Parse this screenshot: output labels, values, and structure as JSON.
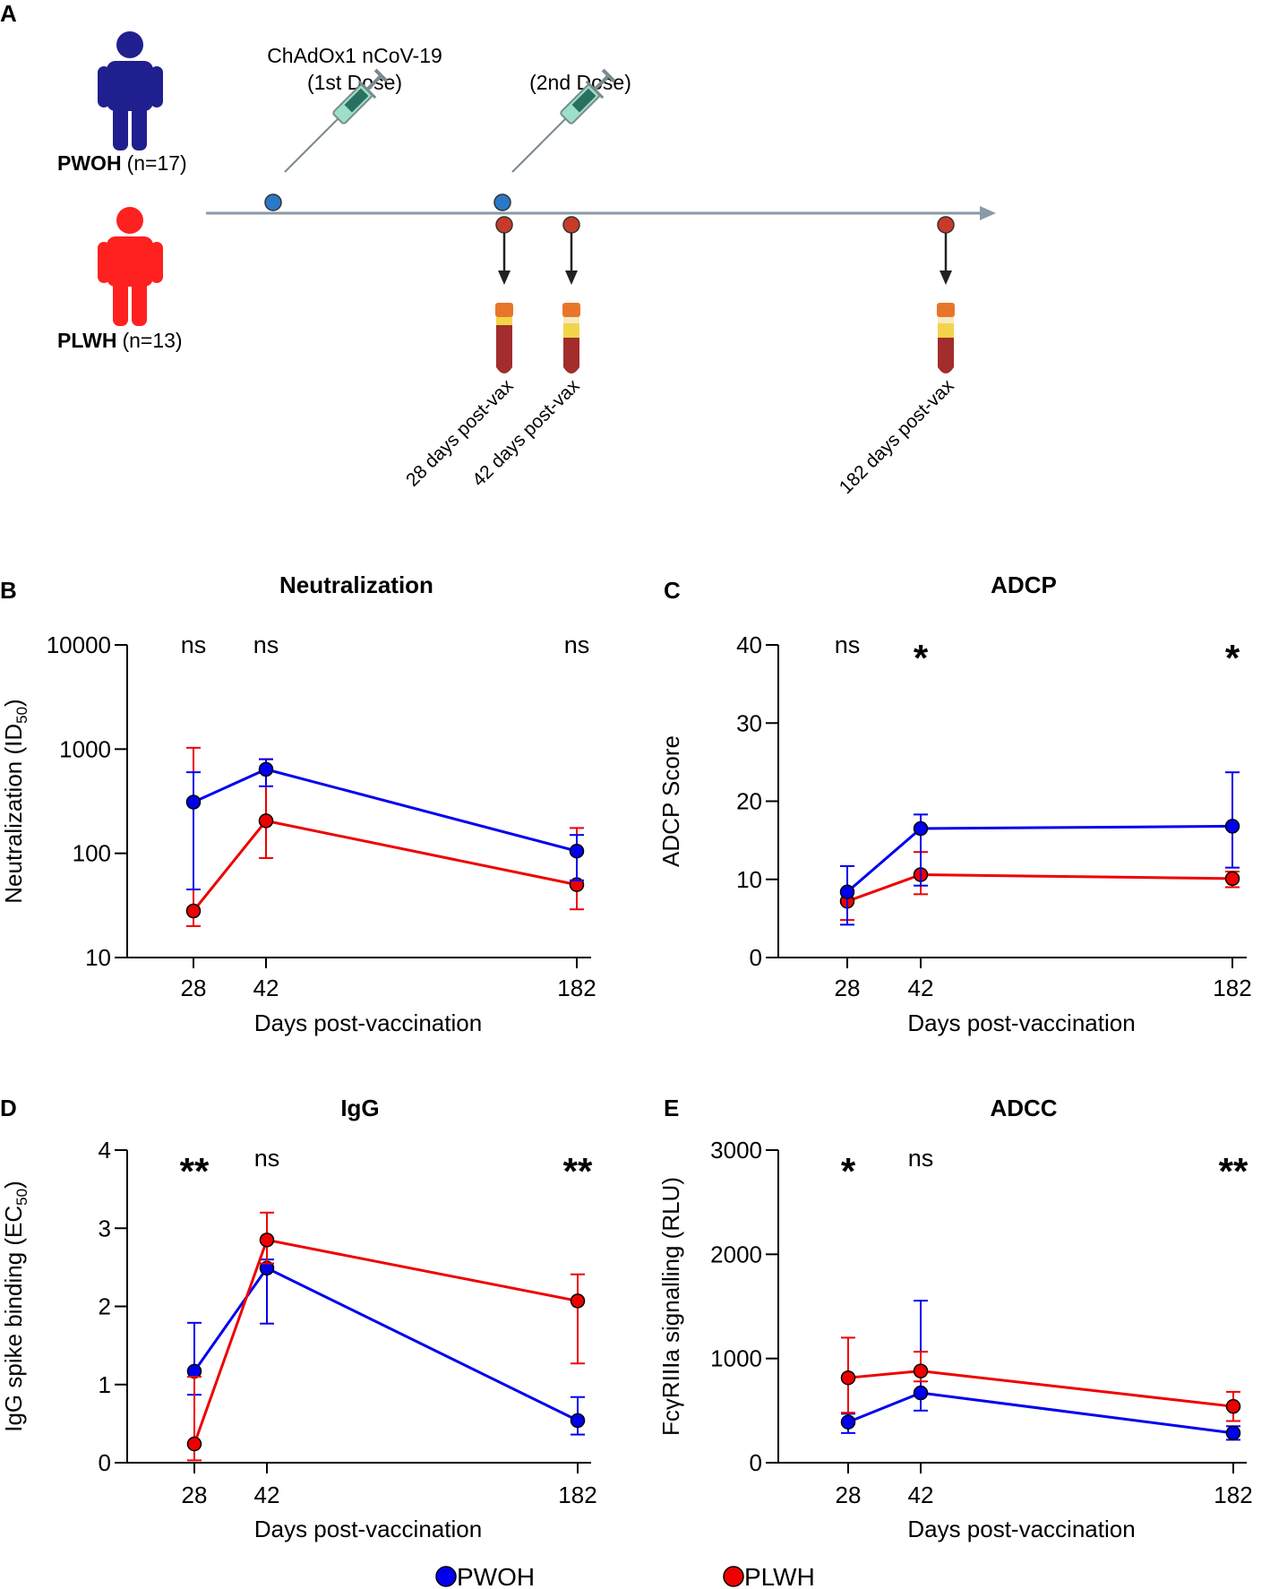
{
  "schematic": {
    "panel_label": "A",
    "groups": [
      {
        "name": "PWOH",
        "n_label": "(n=17)",
        "color": "#1f1f8f"
      },
      {
        "name": "PLWH",
        "n_label": "(n=13)",
        "color": "#ff2020"
      }
    ],
    "doses": [
      {
        "line1": "ChAdOx1 nCoV-19",
        "line2": "(1st Dose)"
      },
      {
        "line1": "",
        "line2": "(2nd Dose)"
      }
    ],
    "timepoints": [
      "28 days post-vax",
      "42 days post-vax",
      "182 days post-vax"
    ]
  },
  "colors": {
    "pwoh": "#0000ee",
    "plwh": "#ee0000",
    "pwoh_dark": "#1f1f8f",
    "plwh_dark": "#ff2020",
    "timeline": "#8a9aa8",
    "dot_blue": "#2a78c8",
    "dot_red": "#c83a2a"
  },
  "legend": [
    {
      "label": "PWOH",
      "color": "#0000ee"
    },
    {
      "label": "PLWH",
      "color": "#ee0000"
    }
  ],
  "chart_data": [
    {
      "panel": "B",
      "type": "line",
      "title": "Neutralization",
      "xlabel": "Days post-vaccination",
      "ylabel": "Neutralization (ID50)",
      "ylabel_main": "Neutralization (ID",
      "ylabel_sub": "50",
      "ylabel_end": ")",
      "yscale": "log",
      "ylim": [
        10,
        10000
      ],
      "yticks": [
        10,
        100,
        1000,
        10000
      ],
      "ytick_labels": [
        "10",
        "100",
        "1000",
        "10000"
      ],
      "x": [
        28,
        42,
        182
      ],
      "xtick_labels": [
        "28",
        "42",
        "182"
      ],
      "series": [
        {
          "name": "PWOH",
          "values": [
            310,
            640,
            105
          ],
          "err_low": [
            45,
            440,
            55
          ],
          "err_high": [
            600,
            800,
            150
          ]
        },
        {
          "name": "PLWH",
          "values": [
            28,
            205,
            50
          ],
          "err_low": [
            20,
            90,
            29
          ],
          "err_high": [
            1030,
            800,
            175
          ]
        }
      ],
      "significance": [
        "ns",
        "ns",
        "ns"
      ]
    },
    {
      "panel": "C",
      "type": "line",
      "title": "ADCP",
      "xlabel": "Days post-vaccination",
      "ylabel": "ADCP Score",
      "yscale": "linear",
      "ylim": [
        0,
        40
      ],
      "yticks": [
        0,
        10,
        20,
        30,
        40
      ],
      "ytick_labels": [
        "0",
        "10",
        "20",
        "30",
        "40"
      ],
      "x": [
        28,
        42,
        182
      ],
      "xtick_labels": [
        "28",
        "42",
        "182"
      ],
      "series": [
        {
          "name": "PWOH",
          "values": [
            8.4,
            16.5,
            16.8
          ],
          "err_low": [
            4.2,
            9.2,
            11.5
          ],
          "err_high": [
            11.7,
            18.3,
            23.7
          ]
        },
        {
          "name": "PLWH",
          "values": [
            7.2,
            10.6,
            10.1
          ],
          "err_low": [
            4.8,
            8.1,
            9.0
          ],
          "err_high": [
            8.5,
            13.5,
            11.0
          ]
        }
      ],
      "significance": [
        "ns",
        "*",
        "*"
      ]
    },
    {
      "panel": "D",
      "type": "line",
      "title": "IgG",
      "xlabel": "Days post-vaccination",
      "ylabel": "IgG spike binding (EC50)",
      "ylabel_main": "IgG spike binding (EC",
      "ylabel_sub": "50",
      "ylabel_end": ")",
      "yscale": "linear",
      "ylim": [
        0,
        4
      ],
      "yticks": [
        0,
        1,
        2,
        3,
        4
      ],
      "ytick_labels": [
        "0",
        "1",
        "2",
        "3",
        "4"
      ],
      "x": [
        28,
        42,
        182
      ],
      "xtick_labels": [
        "28",
        "42",
        "182"
      ],
      "series": [
        {
          "name": "PWOH",
          "values": [
            1.17,
            2.49,
            0.54
          ],
          "err_low": [
            0.87,
            1.78,
            0.36
          ],
          "err_high": [
            1.79,
            2.6,
            0.84
          ]
        },
        {
          "name": "PLWH",
          "values": [
            0.24,
            2.85,
            2.07
          ],
          "err_low": [
            0.03,
            2.55,
            1.27
          ],
          "err_high": [
            1.1,
            3.2,
            2.41
          ]
        }
      ],
      "significance": [
        "**",
        "ns",
        "**"
      ]
    },
    {
      "panel": "E",
      "type": "line",
      "title": "ADCC",
      "xlabel": "Days post-vaccination",
      "ylabel": "FcγRIIIa signalling (RLU)",
      "yscale": "linear",
      "ylim": [
        0,
        3000
      ],
      "yticks": [
        0,
        1000,
        2000,
        3000
      ],
      "ytick_labels": [
        "0",
        "1000",
        "2000",
        "3000"
      ],
      "x": [
        28,
        42,
        182
      ],
      "xtick_labels": [
        "28",
        "42",
        "182"
      ],
      "series": [
        {
          "name": "PWOH",
          "values": [
            390,
            670,
            285
          ],
          "err_low": [
            285,
            500,
            220
          ],
          "err_high": [
            470,
            1555,
            350
          ]
        },
        {
          "name": "PLWH",
          "values": [
            815,
            880,
            540
          ],
          "err_low": [
            480,
            780,
            400
          ],
          "err_high": [
            1200,
            1065,
            680
          ]
        }
      ],
      "significance": [
        "*",
        "ns",
        "**"
      ]
    }
  ]
}
